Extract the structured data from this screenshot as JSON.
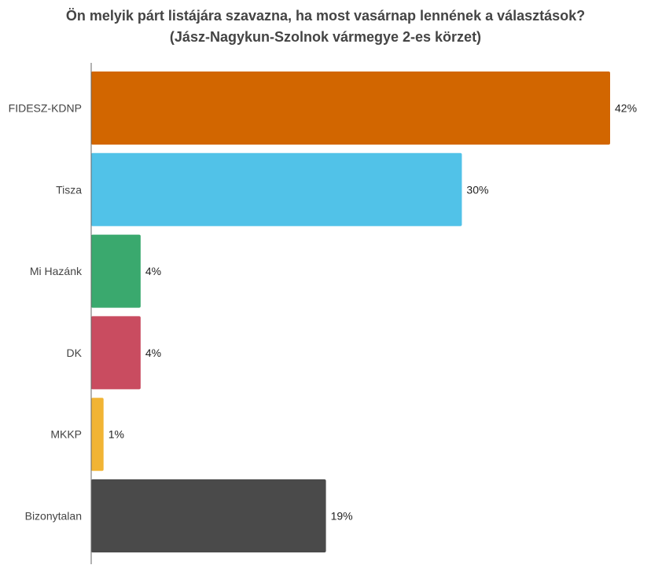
{
  "chart_data": {
    "type": "bar",
    "orientation": "horizontal",
    "title": "Ön melyik párt listájára szavazna, ha most vasárnap lennének a választások?",
    "subtitle": "(Jász-Nagykun-Szolnok vármegye 2-es körzet)",
    "categories": [
      "FIDESZ-KDNP",
      "Tisza",
      "Mi Hazánk",
      "DK",
      "MKKP",
      "Bizonytalan"
    ],
    "values": [
      42,
      30,
      4,
      4,
      1,
      19
    ],
    "value_labels": [
      "42%",
      "30%",
      "4%",
      "4%",
      "1%",
      "19%"
    ],
    "colors": [
      "#d26600",
      "#51c2e8",
      "#3aa96e",
      "#c94c60",
      "#f1b434",
      "#4a4a4a"
    ],
    "unit": "%",
    "xlim": [
      0,
      42
    ],
    "grid": false,
    "legend": "none"
  }
}
